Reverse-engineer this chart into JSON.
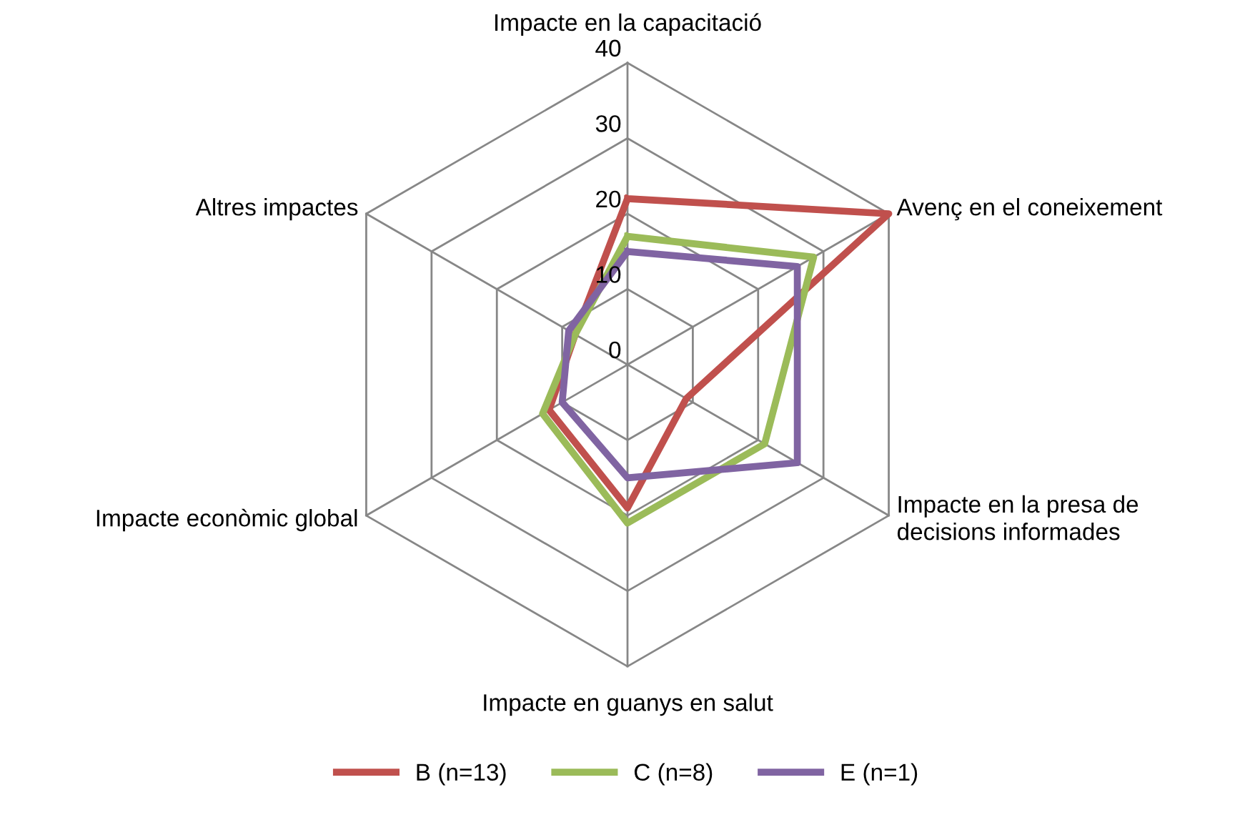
{
  "chart_data": {
    "type": "radar",
    "categories": [
      "Impacte en la capacitació",
      "Avenç en el coneixement",
      "Impacte en la presa de\ndecisions informades",
      "Impacte en guanys en salut",
      "Impacte econòmic global",
      "Altres impactes"
    ],
    "series": [
      {
        "name": "B (n=13)",
        "color": "#c0504d",
        "values": [
          22,
          40,
          9,
          19,
          12,
          8
        ]
      },
      {
        "name": "C (n=8)",
        "color": "#9bbb59",
        "values": [
          17,
          28.5,
          21,
          21,
          13,
          8
        ]
      },
      {
        "name": "E (n=1)",
        "color": "#8064a2",
        "values": [
          15,
          26,
          26,
          15,
          10,
          9
        ]
      }
    ],
    "ylim": [
      0,
      40
    ],
    "yticks": [
      0,
      10,
      20,
      30,
      40
    ],
    "grid": true,
    "legend": "bottom",
    "marker": "none",
    "line_style": "solid"
  }
}
